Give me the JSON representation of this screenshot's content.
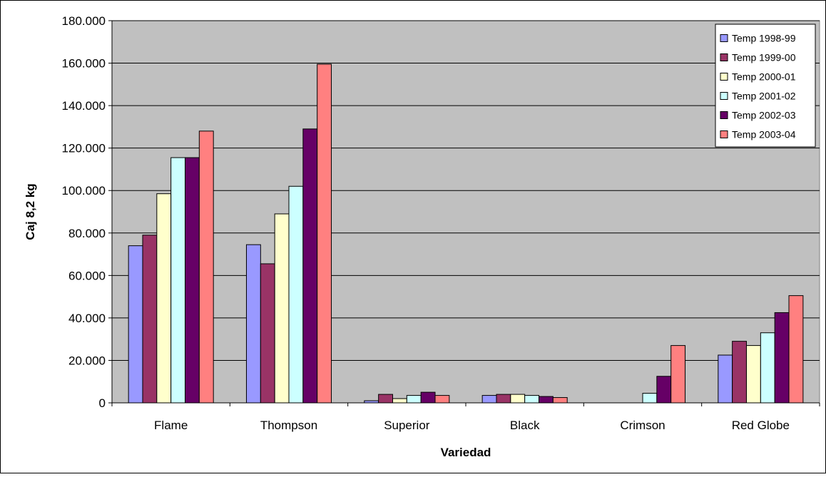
{
  "chart_data": {
    "type": "bar",
    "title": "",
    "xlabel": "Variedad",
    "ylabel": "Caj 8,2 kg",
    "ylim": [
      0,
      180000
    ],
    "ytick_step": 20000,
    "ytick_labels": [
      "0",
      "20.000",
      "40.000",
      "60.000",
      "80.000",
      "100.000",
      "120.000",
      "140.000",
      "160.000",
      "180.000"
    ],
    "grid": true,
    "legend_position": "top-right",
    "categories": [
      "Flame",
      "Thompson",
      "Superior",
      "Black",
      "Crimson",
      "Red Globe"
    ],
    "series": [
      {
        "name": "Temp 1998-99",
        "color": "#9999FF",
        "values": [
          74000,
          74500,
          1000,
          3500,
          0,
          22500
        ]
      },
      {
        "name": "Temp 1999-00",
        "color": "#993366",
        "values": [
          79000,
          65500,
          4000,
          4000,
          0,
          29000
        ]
      },
      {
        "name": "Temp 2000-01",
        "color": "#FFFFCC",
        "values": [
          98500,
          89000,
          2000,
          4000,
          0,
          27000
        ]
      },
      {
        "name": "Temp 2001-02",
        "color": "#CCFFFF",
        "values": [
          115500,
          102000,
          3500,
          3500,
          4500,
          33000
        ]
      },
      {
        "name": "Temp 2002-03",
        "color": "#660066",
        "values": [
          115500,
          129000,
          5000,
          3000,
          12500,
          42500
        ]
      },
      {
        "name": "Temp 2003-04",
        "color": "#FF8080",
        "values": [
          128000,
          159500,
          3500,
          2500,
          27000,
          50500
        ]
      }
    ],
    "plot_background": "#C0C0C0"
  }
}
